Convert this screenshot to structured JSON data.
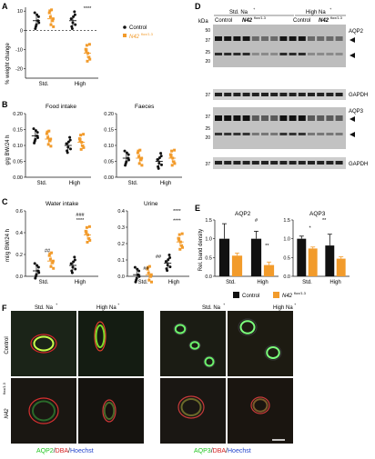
{
  "panels": {
    "A": {
      "letter": "A",
      "ylabel": "% weight change",
      "yticks": [
        "10",
        "0",
        "-10",
        "-20"
      ],
      "xticks": [
        "Std.",
        "High"
      ],
      "legend": [
        {
          "label": "Control",
          "color": "#111111"
        },
        {
          "label": "N42",
          "sup": "flox/1.3",
          "color": "#f29b2b"
        }
      ],
      "sig": "****"
    },
    "B": {
      "letter": "B",
      "ylabel": "g/g BW/24 h",
      "left": {
        "title": "Food intake",
        "yticks": [
          "0.20",
          "0.15",
          "0.10",
          "0.05",
          "0.00"
        ],
        "xticks": [
          "Std.",
          "High"
        ]
      },
      "right": {
        "title": "Faeces",
        "yticks": [
          "0.20",
          "0.15",
          "0.10",
          "0.05",
          "0.00"
        ],
        "xticks": [
          "Std.",
          "High"
        ]
      }
    },
    "C": {
      "letter": "C",
      "ylabel": "ml/g BW/24 h",
      "left": {
        "title": "Water intake",
        "yticks": [
          "0.6",
          "0.4",
          "0.2",
          "0.0"
        ],
        "xticks": [
          "Std.",
          "High"
        ],
        "sig": [
          "##",
          "###",
          "****"
        ]
      },
      "right": {
        "title": "Urine",
        "yticks": [
          "0.4",
          "0.3",
          "0.2",
          "0.1",
          "0.0"
        ],
        "xticks": [
          "Std.",
          "High"
        ],
        "sig": [
          "****",
          "****",
          "##",
          "##"
        ]
      }
    },
    "D": {
      "letter": "D",
      "kda": "kDa",
      "std": "Std. Na",
      "std_sup": "+",
      "high": "High Na",
      "high_sup": "+",
      "control": "Control",
      "n42": "N42",
      "n42_sup": "flox/1.3",
      "blot1_markers": [
        "50",
        "37",
        "25",
        "20"
      ],
      "blot1_label": "AQP2",
      "gapdh": "GAPDH",
      "gapdh_marker": "37",
      "blot2_markers": [
        "37",
        "25",
        "20"
      ],
      "blot2_label": "AQP3"
    },
    "E": {
      "letter": "E",
      "ylabel": "Rel. band density",
      "left": {
        "title": "AQP2",
        "yticks": [
          "1.5",
          "1.0",
          "0.5",
          "0.0"
        ],
        "xticks": [
          "Std.",
          "High"
        ],
        "sig": [
          "#",
          "**"
        ]
      },
      "right": {
        "title": "AQP3",
        "yticks": [
          "1.5",
          "1.0",
          "0.5",
          "0.0"
        ],
        "xticks": [
          "Std.",
          "High"
        ],
        "sig": [
          "*",
          "**"
        ]
      },
      "legend": [
        {
          "label": "Control",
          "color": "#111111"
        },
        {
          "label": "N42",
          "sup": "flox/1.3",
          "color": "#f29b2b"
        }
      ]
    },
    "F": {
      "letter": "F",
      "std": "Std. Na",
      "std_sup": "+",
      "high": "High Na",
      "high_sup": "+",
      "row1": "Control",
      "row2": "N42",
      "row2_sup": "flox/1.3",
      "cap_left": [
        {
          "t": "AQP2",
          "c": "#22c622"
        },
        {
          "t": "/",
          "c": "#111"
        },
        {
          "t": "DBA",
          "c": "#d42020"
        },
        {
          "t": "/",
          "c": "#111"
        },
        {
          "t": "Hoechst",
          "c": "#2244cc"
        }
      ],
      "cap_right": [
        {
          "t": "AQP3",
          "c": "#22c622"
        },
        {
          "t": "/",
          "c": "#111"
        },
        {
          "t": "DBA",
          "c": "#d42020"
        },
        {
          "t": "/",
          "c": "#111"
        },
        {
          "t": "Hoechst",
          "c": "#2244cc"
        }
      ]
    }
  },
  "chart_data": [
    {
      "panel": "A",
      "type": "scatter",
      "title": "",
      "ylabel": "% weight change",
      "categories": [
        "Std.",
        "High"
      ],
      "ylim": [
        -25,
        12
      ],
      "series": [
        {
          "name": "Control",
          "color": "#111111",
          "means": [
            5,
            5
          ]
        },
        {
          "name": "N42 flox/1.3",
          "color": "#f29b2b",
          "means": [
            6,
            -12
          ]
        }
      ]
    },
    {
      "panel": "B",
      "type": "scatter",
      "title": "Food intake",
      "ylabel": "g/g BW/24 h",
      "categories": [
        "Std.",
        "High"
      ],
      "ylim": [
        0,
        0.2
      ],
      "series": [
        {
          "name": "Control",
          "color": "#111111",
          "means": [
            0.13,
            0.1
          ]
        },
        {
          "name": "N42 flox/1.3",
          "color": "#f29b2b",
          "means": [
            0.12,
            0.11
          ]
        }
      ]
    },
    {
      "panel": "B",
      "type": "scatter",
      "title": "Faeces",
      "ylabel": "",
      "categories": [
        "Std.",
        "High"
      ],
      "ylim": [
        0,
        0.2
      ],
      "series": [
        {
          "name": "Control",
          "color": "#111111",
          "means": [
            0.06,
            0.05
          ]
        },
        {
          "name": "N42 flox/1.3",
          "color": "#f29b2b",
          "means": [
            0.06,
            0.06
          ]
        }
      ]
    },
    {
      "panel": "C",
      "type": "scatter",
      "title": "Water intake",
      "ylabel": "ml/g BW/24 h",
      "categories": [
        "Std.",
        "High"
      ],
      "ylim": [
        0,
        0.6
      ],
      "series": [
        {
          "name": "Control",
          "color": "#111111",
          "means": [
            0.05,
            0.1
          ]
        },
        {
          "name": "N42 flox/1.3",
          "color": "#f29b2b",
          "means": [
            0.14,
            0.38
          ]
        }
      ]
    },
    {
      "panel": "C",
      "type": "scatter",
      "title": "Urine",
      "ylabel": "",
      "categories": [
        "Std.",
        "High"
      ],
      "ylim": [
        0,
        0.4
      ],
      "series": [
        {
          "name": "Control",
          "color": "#111111",
          "means": [
            0.01,
            0.08
          ]
        },
        {
          "name": "N42 flox/1.3",
          "color": "#f29b2b",
          "means": [
            0.01,
            0.21
          ]
        }
      ]
    },
    {
      "panel": "E",
      "type": "bar",
      "title": "AQP2",
      "ylabel": "Rel. band density",
      "categories": [
        "Std.",
        "High"
      ],
      "ylim": [
        0,
        1.5
      ],
      "series": [
        {
          "name": "Control",
          "color": "#111111",
          "values": [
            1.0,
            1.0
          ],
          "err": [
            0.4,
            0.2
          ]
        },
        {
          "name": "N42 flox/1.3",
          "color": "#f29b2b",
          "values": [
            0.55,
            0.3
          ],
          "err": [
            0.07,
            0.08
          ]
        }
      ]
    },
    {
      "panel": "E",
      "type": "bar",
      "title": "AQP3",
      "ylabel": "",
      "categories": [
        "Std.",
        "High"
      ],
      "ylim": [
        0,
        1.5
      ],
      "series": [
        {
          "name": "Control",
          "color": "#111111",
          "values": [
            1.0,
            0.82
          ],
          "err": [
            0.07,
            0.3
          ]
        },
        {
          "name": "N42 flox/1.3",
          "color": "#f29b2b",
          "values": [
            0.74,
            0.47
          ],
          "err": [
            0.04,
            0.05
          ]
        }
      ]
    }
  ]
}
